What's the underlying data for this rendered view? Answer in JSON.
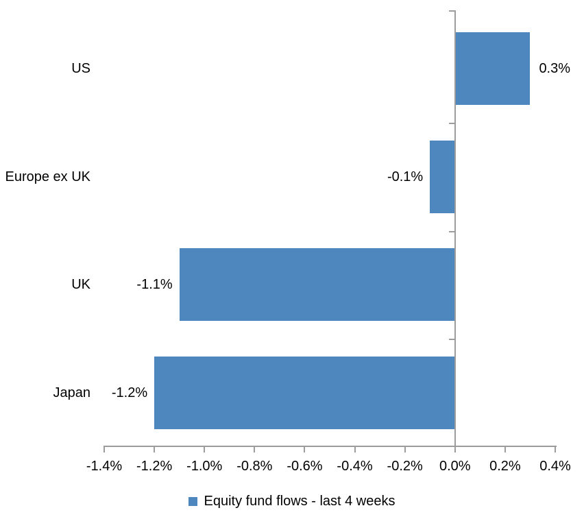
{
  "chart_data": {
    "type": "bar",
    "orientation": "horizontal",
    "title": "",
    "xlabel": "",
    "ylabel": "",
    "categories": [
      "US",
      "Europe ex UK",
      "UK",
      "Japan"
    ],
    "series": [
      {
        "name": "Equity fund flows - last 4 weeks",
        "values": [
          0.3,
          -0.1,
          -1.1,
          -1.2
        ],
        "data_labels": [
          "0.3%",
          "-0.1%",
          "-1.1%",
          "-1.2%"
        ]
      }
    ],
    "xlim": [
      -1.4,
      0.4
    ],
    "x_tick_values": [
      -1.4,
      -1.2,
      -1.0,
      -0.8,
      -0.6,
      -0.4,
      -0.2,
      0.0,
      0.2,
      0.4
    ],
    "x_tick_labels": [
      "-1.4%",
      "-1.2%",
      "-1.0%",
      "-0.8%",
      "-0.6%",
      "-0.4%",
      "-0.2%",
      "0.0%",
      "0.2%",
      "0.4%"
    ],
    "grid": "off",
    "legend_position": "bottom",
    "colors": {
      "bar": "#4E86BE",
      "axis": "#9C9C9C",
      "text": "#000000",
      "background": "#FFFFFF"
    }
  },
  "legend": {
    "label": "Equity fund flows - last 4 weeks",
    "marker_color": "#4E86BE"
  }
}
